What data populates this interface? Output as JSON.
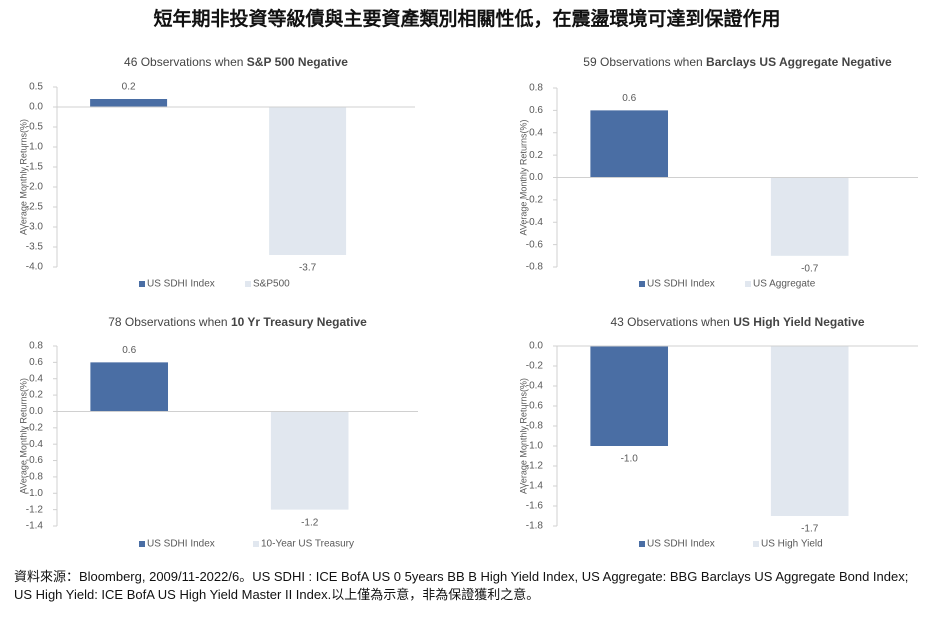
{
  "title": "短年期非投資等級債與主要資產類別相關性低，在震盪環境可達到保證作用",
  "footnote": "資料來源：Bloomberg, 2009/11-2022/6。US SDHI : ICE BofA US 0 5years BB B High Yield Index, US Aggregate: BBG Barclays US Aggregate Bond Index; US High Yield: ICE BofA US High Yield Master II Index.以上僅為示意，非為保證獲利之意。",
  "chart_data": [
    {
      "type": "bar",
      "title": [
        "46 Observations when ",
        "S&P 500 Negative"
      ],
      "y_label": "AVerage Monthly Returns(%)",
      "series": [
        {
          "name": "US SDHI Index",
          "color": "#4a6ea4",
          "values": [
            0.2
          ]
        },
        {
          "name": "S&P500",
          "color": "#e1e7ef",
          "values": [
            -3.7
          ]
        }
      ],
      "ylim": [
        -4.0,
        0.5
      ],
      "yticks": [
        0.5,
        {
          "value": 0,
          "label": "0.0"
        },
        -0.5,
        {
          "value": -1,
          "label": "-1.0"
        },
        -1.5,
        {
          "value": -2,
          "label": "-2.0"
        },
        -2.5,
        {
          "value": -3,
          "label": "-3.0"
        },
        -3.5,
        {
          "value": -4,
          "label": "-4.0"
        }
      ]
    },
    {
      "type": "bar",
      "title": [
        "59 Observations when ",
        "Barclays US Aggregate Negative"
      ],
      "y_label": "AVerage Monthly Returns(%)",
      "series": [
        {
          "name": "US SDHI Index",
          "color": "#4a6ea4",
          "values": [
            0.6
          ]
        },
        {
          "name": "US Aggregate",
          "color": "#e1e7ef",
          "values": [
            -0.7
          ]
        }
      ],
      "ylim": [
        -0.8,
        0.8
      ],
      "yticks": [
        0.8,
        0.6,
        0.4,
        0.2,
        {
          "value": 0,
          "label": "0.0"
        },
        -0.2,
        -0.4,
        -0.6,
        -0.8
      ]
    },
    {
      "type": "bar",
      "title": [
        "78 Observations when ",
        "10 Yr Treasury Negative"
      ],
      "y_label": "AVerage Monthly Returns(%)",
      "series": [
        {
          "name": "US SDHI Index",
          "color": "#4a6ea4",
          "values": [
            0.6
          ]
        },
        {
          "name": "10-Year US Treasury",
          "color": "#e1e7ef",
          "values": [
            -1.2
          ]
        }
      ],
      "ylim": [
        -1.4,
        0.8
      ],
      "yticks": [
        0.8,
        0.6,
        0.4,
        0.2,
        {
          "value": 0,
          "label": "0.0"
        },
        -0.2,
        -0.4,
        -0.6,
        -0.8,
        {
          "value": -1,
          "label": "-1.0"
        },
        -1.2,
        -1.4
      ]
    },
    {
      "type": "bar",
      "title": [
        "43 Observations when ",
        "US High Yield Negative"
      ],
      "y_label": "AVerage Monthly Returns(%)",
      "series": [
        {
          "name": "US SDHI Index",
          "color": "#4a6ea4",
          "values": [
            -1.0
          ],
          "value_labels": [
            "-1.0"
          ]
        },
        {
          "name": "US High Yield",
          "color": "#e1e7ef",
          "values": [
            -1.7
          ]
        }
      ],
      "ylim": [
        -1.8,
        0
      ],
      "yticks": [
        {
          "value": 0,
          "label": "0.0"
        },
        -0.2,
        -0.4,
        -0.6,
        -0.8,
        {
          "value": -1,
          "label": "-1.0"
        },
        -1.2,
        -1.4,
        -1.6,
        -1.8
      ]
    }
  ]
}
